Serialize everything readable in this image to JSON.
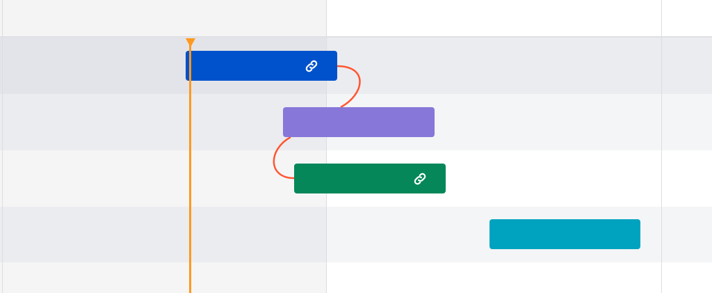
{
  "timeline": {
    "colors": {
      "header_past": "#f4f4f5",
      "header_future": "#ffffff",
      "today_marker": "#ff991f",
      "dependency_line": "#ff5630",
      "grid_line": "#dcdde1"
    },
    "rows": [
      {
        "past_bg": "#e3e4e9",
        "future_bg": "#ebecf0"
      },
      {
        "past_bg": "#ebecf0",
        "future_bg": "#f4f5f7"
      },
      {
        "past_bg": "#f5f5f6",
        "future_bg": "#ffffff"
      },
      {
        "past_bg": "#ebecf0",
        "future_bg": "#f4f5f7"
      },
      {
        "past_bg": "#f5f5f6",
        "future_bg": "#ffffff"
      }
    ],
    "bars": [
      {
        "color": "#0052cc",
        "icon": "link-icon",
        "has_link": true
      },
      {
        "color": "#8777d9",
        "icon": "",
        "has_link": false
      },
      {
        "color": "#06875a",
        "icon": "link-icon",
        "has_link": true
      },
      {
        "color": "#00a3bf",
        "icon": "",
        "has_link": false
      }
    ],
    "dependencies": [
      {
        "from_bar": 1,
        "to_bar": 2
      },
      {
        "from_bar": 2,
        "to_bar": 3
      }
    ]
  }
}
